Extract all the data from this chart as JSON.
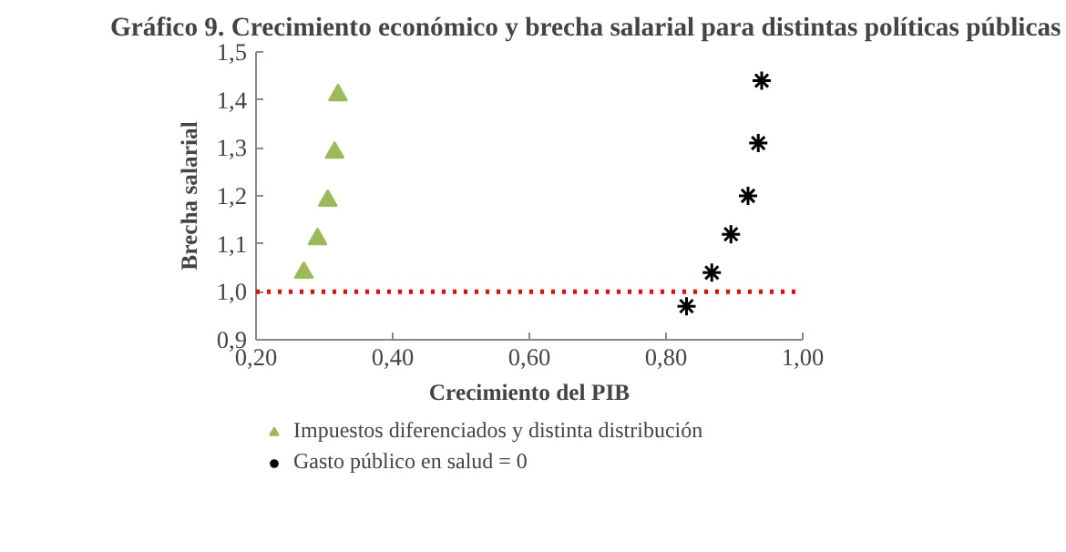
{
  "chart_data": {
    "type": "scatter",
    "title": "Gráfico 9. Crecimiento económico y brecha salarial para distintas políticas públicas",
    "xlabel": "Crecimiento del PIB",
    "ylabel": "Brecha salarial",
    "xlim": [
      0.2,
      1.0
    ],
    "xticks": [
      {
        "value": 0.2,
        "label": "0,20"
      },
      {
        "value": 0.4,
        "label": "0,40"
      },
      {
        "value": 0.6,
        "label": "0,60"
      },
      {
        "value": 0.8,
        "label": "0,80"
      },
      {
        "value": 1.0,
        "label": "1,00"
      }
    ],
    "ylim": [
      0.9,
      1.5
    ],
    "yticks": [
      {
        "value": 0.9,
        "label": "0,9"
      },
      {
        "value": 1.0,
        "label": "1,0"
      },
      {
        "value": 1.1,
        "label": "1,1"
      },
      {
        "value": 1.2,
        "label": "1,2"
      },
      {
        "value": 1.3,
        "label": "1,3"
      },
      {
        "value": 1.4,
        "label": "1,4"
      },
      {
        "value": 1.5,
        "label": "1,5"
      }
    ],
    "grid": false,
    "legend": "bottom",
    "series": [
      {
        "name": "Impuestos diferenciados y distinta distribución",
        "color": "#9bbb59",
        "marker": "triangle",
        "x": [
          0.27,
          0.29,
          0.305,
          0.315,
          0.32
        ],
        "values": [
          1.04,
          1.11,
          1.19,
          1.29,
          1.41
        ]
      },
      {
        "name": "Gasto público en salud = 0",
        "color": "#000000",
        "marker": "cross",
        "x": [
          0.83,
          0.867,
          0.895,
          0.92,
          0.935,
          0.94
        ],
        "values": [
          0.97,
          1.04,
          1.12,
          1.2,
          1.31,
          1.44
        ]
      }
    ],
    "ref_lines": [
      {
        "axis": "y",
        "value": 1.0,
        "color": "#ff0000",
        "line_style": "dotted"
      }
    ]
  }
}
